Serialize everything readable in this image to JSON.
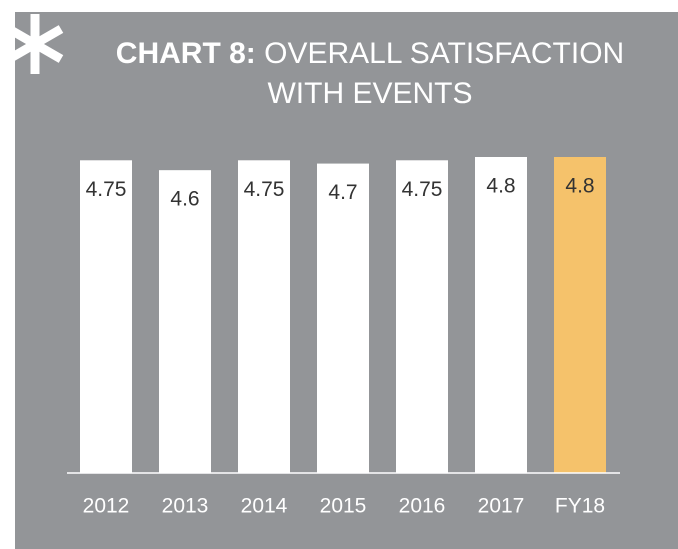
{
  "chart_data": {
    "type": "bar",
    "title_label": "CHART 8:",
    "title": "OVERALL SATISFACTION WITH EVENTS",
    "categories": [
      "2012",
      "2013",
      "2014",
      "2015",
      "2016",
      "2017",
      "FY18"
    ],
    "values": [
      4.75,
      4.6,
      4.75,
      4.7,
      4.75,
      4.8,
      4.8
    ],
    "colors": [
      "#ffffff",
      "#ffffff",
      "#ffffff",
      "#ffffff",
      "#ffffff",
      "#ffffff",
      "#f5c26b"
    ],
    "ylim": [
      0,
      4.8
    ]
  }
}
